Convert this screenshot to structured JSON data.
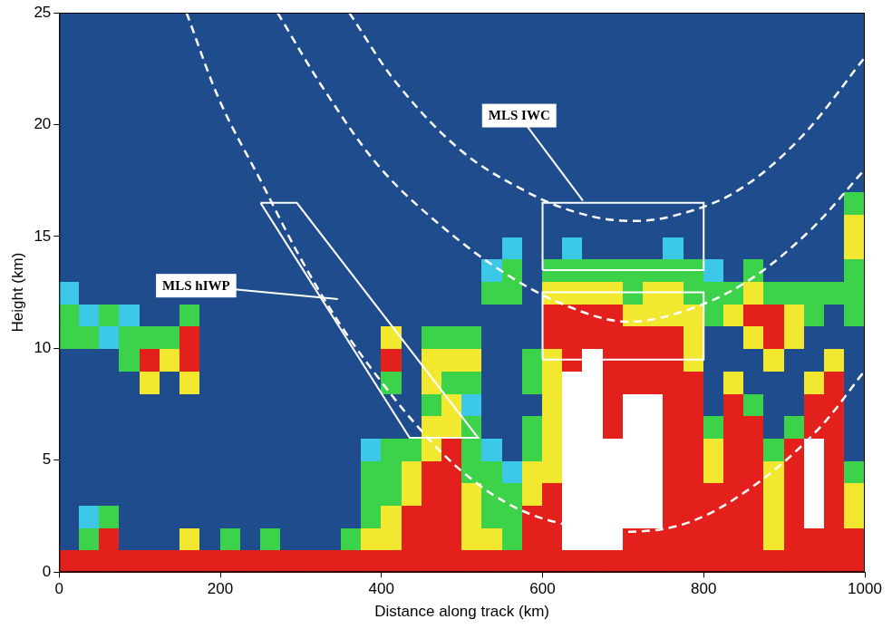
{
  "chart_data": {
    "type": "heatmap",
    "x_label": "Distance along track (km)",
    "y_label": "Height (km)",
    "xlim": [
      0,
      1000
    ],
    "ylim": [
      0,
      25
    ],
    "xticks": [
      0,
      200,
      400,
      600,
      800,
      1000
    ],
    "yticks": [
      0,
      5,
      10,
      15,
      20,
      25
    ],
    "grid": false,
    "legend": "none",
    "cells": [
      [
        4,
        4,
        4,
        4,
        4,
        4,
        4,
        4,
        4,
        4,
        4,
        4,
        4,
        4,
        4,
        4,
        4,
        4,
        4,
        4,
        4,
        4,
        4,
        4,
        4,
        4,
        4,
        4,
        4,
        4,
        4,
        4,
        4,
        4,
        4,
        4,
        4,
        4,
        4,
        4
      ],
      [
        0,
        2,
        4,
        0,
        0,
        0,
        3,
        0,
        2,
        0,
        2,
        0,
        0,
        0,
        2,
        3,
        3,
        4,
        4,
        4,
        3,
        3,
        2,
        4,
        4,
        5,
        5,
        5,
        4,
        4,
        4,
        4,
        4,
        4,
        4,
        3,
        4,
        4,
        4,
        4
      ],
      [
        0,
        1,
        2,
        0,
        0,
        0,
        0,
        0,
        0,
        0,
        0,
        0,
        0,
        0,
        0,
        2,
        3,
        4,
        4,
        4,
        3,
        2,
        2,
        4,
        4,
        5,
        5,
        5,
        5,
        5,
        4,
        4,
        4,
        4,
        4,
        3,
        4,
        5,
        4,
        3
      ],
      [
        0,
        0,
        0,
        0,
        0,
        0,
        0,
        0,
        0,
        0,
        0,
        0,
        0,
        0,
        0,
        2,
        2,
        3,
        4,
        4,
        3,
        2,
        2,
        3,
        4,
        5,
        5,
        5,
        5,
        5,
        4,
        4,
        4,
        4,
        4,
        3,
        4,
        5,
        4,
        3
      ],
      [
        0,
        0,
        0,
        0,
        0,
        0,
        0,
        0,
        0,
        0,
        0,
        0,
        0,
        0,
        0,
        2,
        2,
        3,
        4,
        4,
        2,
        2,
        1,
        3,
        3,
        5,
        5,
        5,
        5,
        5,
        4,
        4,
        3,
        4,
        4,
        3,
        4,
        5,
        4,
        2
      ],
      [
        0,
        0,
        0,
        0,
        0,
        0,
        0,
        0,
        0,
        0,
        0,
        0,
        0,
        0,
        0,
        1,
        2,
        2,
        3,
        4,
        2,
        1,
        0,
        2,
        3,
        5,
        5,
        5,
        5,
        5,
        4,
        4,
        3,
        4,
        4,
        2,
        4,
        5,
        4,
        0
      ],
      [
        0,
        0,
        0,
        0,
        0,
        0,
        0,
        0,
        0,
        0,
        0,
        0,
        0,
        0,
        0,
        0,
        0,
        0,
        3,
        3,
        2,
        0,
        0,
        2,
        3,
        5,
        5,
        4,
        5,
        5,
        4,
        4,
        2,
        4,
        4,
        0,
        2,
        4,
        4,
        0
      ],
      [
        0,
        0,
        0,
        0,
        0,
        0,
        0,
        0,
        0,
        0,
        0,
        0,
        0,
        0,
        0,
        0,
        0,
        0,
        2,
        3,
        1,
        0,
        0,
        0,
        3,
        5,
        5,
        4,
        5,
        5,
        4,
        4,
        0,
        4,
        2,
        0,
        0,
        4,
        4,
        0
      ],
      [
        0,
        0,
        0,
        0,
        3,
        0,
        3,
        0,
        0,
        0,
        0,
        0,
        0,
        0,
        0,
        0,
        2,
        0,
        3,
        2,
        2,
        0,
        0,
        2,
        3,
        5,
        5,
        4,
        4,
        4,
        4,
        4,
        0,
        3,
        0,
        0,
        0,
        3,
        4,
        0
      ],
      [
        0,
        0,
        0,
        2,
        4,
        3,
        4,
        0,
        0,
        0,
        0,
        0,
        0,
        0,
        0,
        0,
        4,
        0,
        3,
        3,
        3,
        0,
        0,
        2,
        3,
        4,
        5,
        4,
        4,
        4,
        4,
        3,
        0,
        0,
        0,
        3,
        0,
        0,
        3,
        0
      ],
      [
        2,
        2,
        1,
        2,
        2,
        2,
        4,
        0,
        0,
        0,
        0,
        0,
        0,
        0,
        0,
        0,
        3,
        0,
        2,
        2,
        2,
        0,
        0,
        0,
        4,
        4,
        4,
        4,
        4,
        4,
        4,
        3,
        0,
        0,
        3,
        4,
        3,
        0,
        0,
        0
      ],
      [
        2,
        1,
        2,
        1,
        0,
        0,
        2,
        0,
        0,
        0,
        0,
        0,
        0,
        0,
        0,
        0,
        0,
        0,
        0,
        0,
        0,
        0,
        0,
        0,
        4,
        4,
        4,
        4,
        3,
        3,
        3,
        3,
        2,
        3,
        4,
        4,
        3,
        2,
        0,
        2
      ],
      [
        1,
        0,
        0,
        0,
        0,
        0,
        0,
        0,
        0,
        0,
        0,
        0,
        0,
        0,
        0,
        0,
        0,
        0,
        0,
        0,
        0,
        2,
        2,
        0,
        3,
        3,
        3,
        3,
        2,
        3,
        3,
        2,
        2,
        2,
        3,
        2,
        2,
        2,
        2,
        2
      ],
      [
        0,
        0,
        0,
        0,
        0,
        0,
        0,
        0,
        0,
        0,
        0,
        0,
        0,
        0,
        0,
        0,
        0,
        0,
        0,
        0,
        0,
        1,
        2,
        0,
        2,
        2,
        2,
        2,
        2,
        2,
        2,
        2,
        1,
        0,
        2,
        0,
        0,
        0,
        0,
        2
      ],
      [
        0,
        0,
        0,
        0,
        0,
        0,
        0,
        0,
        0,
        0,
        0,
        0,
        0,
        0,
        0,
        0,
        0,
        0,
        0,
        0,
        0,
        0,
        1,
        0,
        0,
        1,
        0,
        0,
        0,
        0,
        1,
        0,
        0,
        0,
        0,
        0,
        0,
        0,
        0,
        3
      ],
      [
        0,
        0,
        0,
        0,
        0,
        0,
        0,
        0,
        0,
        0,
        0,
        0,
        0,
        0,
        0,
        0,
        0,
        0,
        0,
        0,
        0,
        0,
        0,
        0,
        0,
        0,
        0,
        0,
        0,
        0,
        0,
        0,
        0,
        0,
        0,
        0,
        0,
        0,
        0,
        3
      ],
      [
        0,
        0,
        0,
        0,
        0,
        0,
        0,
        0,
        0,
        0,
        0,
        0,
        0,
        0,
        0,
        0,
        0,
        0,
        0,
        0,
        0,
        0,
        0,
        0,
        0,
        0,
        0,
        0,
        0,
        0,
        0,
        0,
        0,
        0,
        0,
        0,
        0,
        0,
        0,
        2
      ],
      [
        0,
        0,
        0,
        0,
        0,
        0,
        0,
        0,
        0,
        0,
        0,
        0,
        0,
        0,
        0,
        0,
        0,
        0,
        0,
        0,
        0,
        0,
        0,
        0,
        0,
        0,
        0,
        0,
        0,
        0,
        0,
        0,
        0,
        0,
        0,
        0,
        0,
        0,
        0,
        0
      ],
      [
        0,
        0,
        0,
        0,
        0,
        0,
        0,
        0,
        0,
        0,
        0,
        0,
        0,
        0,
        0,
        0,
        0,
        0,
        0,
        0,
        0,
        0,
        0,
        0,
        0,
        0,
        0,
        0,
        0,
        0,
        0,
        0,
        0,
        0,
        0,
        0,
        0,
        0,
        0,
        0
      ],
      [
        0,
        0,
        0,
        0,
        0,
        0,
        0,
        0,
        0,
        0,
        0,
        0,
        0,
        0,
        0,
        0,
        0,
        0,
        0,
        0,
        0,
        0,
        0,
        0,
        0,
        0,
        0,
        0,
        0,
        0,
        0,
        0,
        0,
        0,
        0,
        0,
        0,
        0,
        0,
        0
      ],
      [
        0,
        0,
        0,
        0,
        0,
        0,
        0,
        0,
        0,
        0,
        0,
        0,
        0,
        0,
        0,
        0,
        0,
        0,
        0,
        0,
        0,
        0,
        0,
        0,
        0,
        0,
        0,
        0,
        0,
        0,
        0,
        0,
        0,
        0,
        0,
        0,
        0,
        0,
        0,
        0
      ],
      [
        0,
        0,
        0,
        0,
        0,
        0,
        0,
        0,
        0,
        0,
        0,
        0,
        0,
        0,
        0,
        0,
        0,
        0,
        0,
        0,
        0,
        0,
        0,
        0,
        0,
        0,
        0,
        0,
        0,
        0,
        0,
        0,
        0,
        0,
        0,
        0,
        0,
        0,
        0,
        0
      ],
      [
        0,
        0,
        0,
        0,
        0,
        0,
        0,
        0,
        0,
        0,
        0,
        0,
        0,
        0,
        0,
        0,
        0,
        0,
        0,
        0,
        0,
        0,
        0,
        0,
        0,
        0,
        0,
        0,
        0,
        0,
        0,
        0,
        0,
        0,
        0,
        0,
        0,
        0,
        0,
        0
      ],
      [
        0,
        0,
        0,
        0,
        0,
        0,
        0,
        0,
        0,
        0,
        0,
        0,
        0,
        0,
        0,
        0,
        0,
        0,
        0,
        0,
        0,
        0,
        0,
        0,
        0,
        0,
        0,
        0,
        0,
        0,
        0,
        0,
        0,
        0,
        0,
        0,
        0,
        0,
        0,
        0
      ],
      [
        0,
        0,
        0,
        0,
        0,
        0,
        0,
        0,
        0,
        0,
        0,
        0,
        0,
        0,
        0,
        0,
        0,
        0,
        0,
        0,
        0,
        0,
        0,
        0,
        0,
        0,
        0,
        0,
        0,
        0,
        0,
        0,
        0,
        0,
        0,
        0,
        0,
        0,
        0,
        0
      ]
    ],
    "curves": [
      {
        "line_style": "dashed",
        "color": "#ffffff",
        "x": [
          360,
          420,
          500,
          580,
          640,
          700,
          760,
          840,
          920,
          1000
        ],
        "y": [
          25,
          21.8,
          18.8,
          17,
          16.1,
          15.7,
          15.9,
          17,
          19.4,
          23
        ]
      },
      {
        "line_style": "dashed",
        "color": "#ffffff",
        "x": [
          271,
          330,
          400,
          480,
          560,
          630,
          700,
          770,
          850,
          930,
          1000
        ],
        "y": [
          25,
          21.5,
          18,
          15.3,
          13.2,
          11.9,
          11.2,
          11.6,
          12.9,
          15.2,
          18
        ]
      },
      {
        "line_style": "dashed",
        "color": "#ffffff",
        "x": [
          158,
          200,
          250,
          300,
          350,
          400,
          450,
          500,
          560,
          620,
          700,
          780,
          860,
          940,
          1000
        ],
        "y": [
          25,
          21,
          17.5,
          14,
          11,
          8.5,
          6.3,
          4.5,
          3,
          2.2,
          1.8,
          2.2,
          3.8,
          6.3,
          9
        ]
      }
    ],
    "boxes": [
      {
        "color": "#ffffff",
        "x": [
          600,
          800,
          800,
          600
        ],
        "y": [
          13.5,
          13.5,
          16.5,
          16.5
        ]
      },
      {
        "color": "#ffffff",
        "x": [
          600,
          800,
          800,
          600
        ],
        "y": [
          9.5,
          9.5,
          12.5,
          12.5
        ]
      },
      {
        "color": "#ffffff",
        "x": [
          250,
          295,
          520,
          435
        ],
        "y": [
          16.5,
          16.5,
          6,
          6
        ]
      }
    ],
    "annotations": [
      {
        "text": "MLS IWC",
        "x": 571,
        "y": 20.4,
        "to": [
          650,
          16.6
        ]
      },
      {
        "text": "MLS hIWP",
        "x": 170,
        "y": 12.8,
        "to": [
          346,
          12.2
        ]
      }
    ]
  }
}
